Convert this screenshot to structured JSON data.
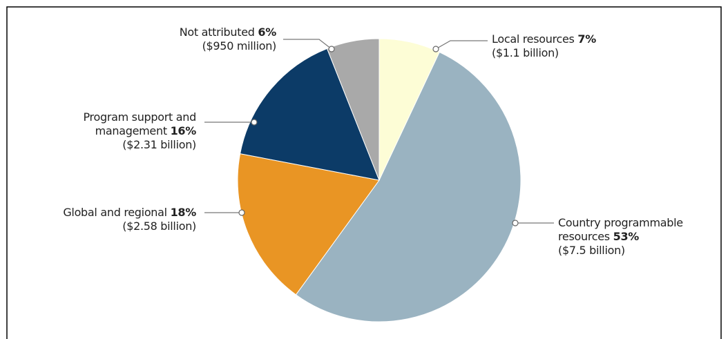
{
  "chart_data": {
    "type": "pie",
    "categories": [
      "Local resources",
      "Country programmable resources",
      "Global and regional",
      "Program support and management",
      "Not attributed"
    ],
    "values": [
      7,
      53,
      18,
      16,
      6
    ],
    "value_labels": [
      "7%",
      "53%",
      "18%",
      "16%",
      "6%"
    ],
    "amounts": [
      "($1.1 billion)",
      "($7.5 billion)",
      "($2.58 billion)",
      "($2.31 billion)",
      "($950 million)"
    ],
    "colors": [
      "#fdfdd6",
      "#9ab3c1",
      "#e99524",
      "#0c3b67",
      "#a9a9a9"
    ]
  }
}
